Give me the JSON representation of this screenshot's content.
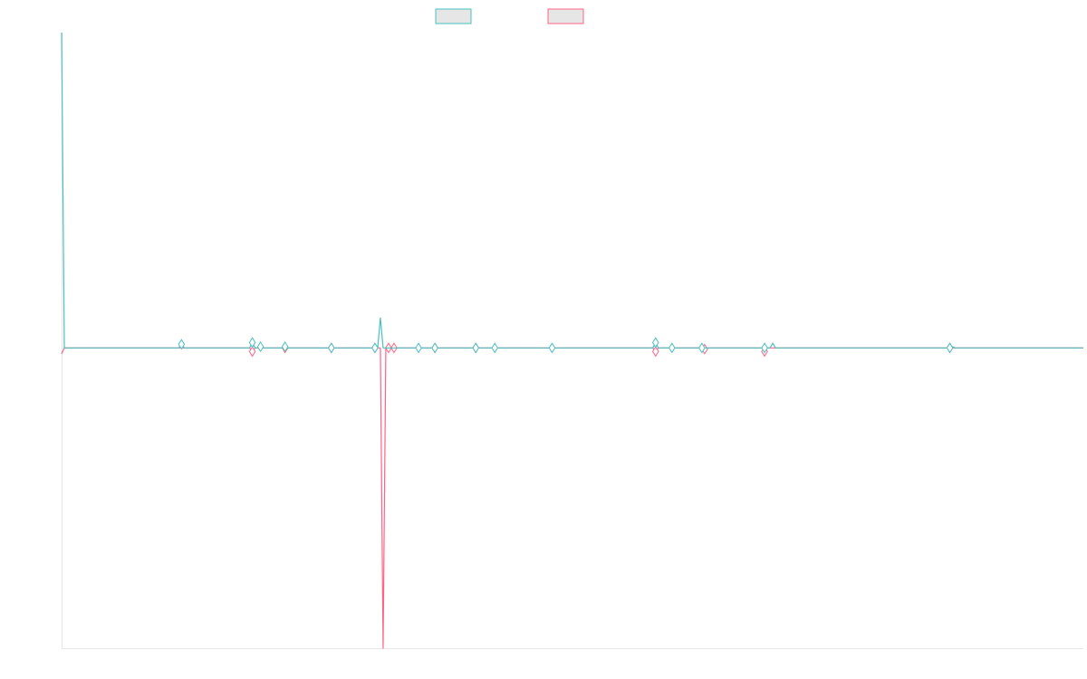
{
  "chart_data": {
    "type": "line",
    "title": "",
    "xlabel": "",
    "ylabel": "",
    "x": [
      0,
      1,
      2,
      3,
      4,
      5,
      6,
      7,
      8,
      9,
      10,
      11,
      12,
      13,
      14,
      15,
      16,
      17,
      18,
      19,
      20,
      21,
      22,
      23,
      24,
      25,
      26,
      27,
      28,
      29,
      30,
      31,
      32,
      33,
      34,
      35,
      36,
      37,
      38,
      39,
      40,
      41,
      42,
      43,
      44,
      45,
      46,
      47,
      48,
      49,
      50,
      51,
      52,
      53,
      54,
      55,
      56,
      57,
      58,
      59,
      60,
      61,
      62,
      63,
      64,
      65,
      66,
      67,
      68,
      69,
      70,
      71,
      72,
      73,
      74,
      75,
      76,
      77,
      78,
      79,
      80,
      81,
      82,
      83,
      84,
      85,
      86,
      87,
      88,
      89,
      90,
      91,
      92,
      93,
      94,
      95,
      96,
      97,
      98,
      99,
      100,
      101,
      102,
      103,
      104,
      105,
      106,
      107,
      108,
      109,
      110,
      111,
      112,
      113,
      114,
      115,
      116,
      117,
      118,
      119,
      120,
      121,
      122,
      123,
      124,
      125,
      126,
      127,
      128,
      129,
      130,
      131,
      132,
      133,
      134,
      135,
      136,
      137,
      138,
      139,
      140,
      141,
      142,
      143,
      144,
      145,
      146,
      147,
      148,
      149,
      150,
      151,
      152,
      153,
      154,
      155,
      156,
      157,
      158,
      159,
      160,
      161,
      162,
      163,
      164,
      165,
      166,
      167,
      168,
      169,
      170,
      171,
      172,
      173,
      174,
      175,
      176,
      177,
      178,
      179,
      180,
      181,
      182,
      183,
      184,
      185,
      186,
      187,
      188,
      189,
      190,
      191,
      192,
      193,
      194,
      195,
      196,
      197,
      198,
      199,
      200,
      201,
      202,
      203,
      204,
      205,
      206,
      207,
      208,
      209,
      210,
      211,
      212,
      213,
      214,
      215,
      216,
      217,
      218,
      219,
      220,
      221,
      222,
      223,
      224,
      225,
      226,
      227,
      228,
      229,
      230,
      231,
      232,
      233,
      234,
      235,
      236,
      237,
      238,
      239,
      240,
      241,
      242,
      243,
      244,
      245,
      246,
      247,
      248,
      249,
      250,
      251,
      252,
      253,
      254,
      255,
      256,
      257,
      258,
      259,
      260,
      261,
      262,
      263,
      264,
      265,
      266,
      267,
      268,
      269,
      270,
      271,
      272,
      273,
      274,
      275,
      276,
      277,
      278,
      279,
      280,
      281,
      282,
      283,
      284,
      285,
      286,
      287,
      288,
      289,
      290,
      291,
      292,
      293,
      294,
      295,
      296,
      297,
      298,
      299,
      300,
      301,
      302,
      303,
      304,
      305,
      306,
      307,
      308,
      309,
      310,
      311,
      312,
      313,
      314,
      315,
      316,
      317,
      318,
      319,
      320,
      321,
      322,
      323,
      324,
      325,
      326,
      327,
      328,
      329,
      330,
      331,
      332,
      333,
      334,
      335,
      336,
      337,
      338,
      339,
      340,
      341,
      342,
      343,
      344,
      345,
      346,
      347,
      348,
      349,
      350,
      351,
      352,
      353,
      354,
      355,
      356,
      357,
      358,
      359,
      360,
      361,
      362,
      363,
      364,
      365,
      366,
      367,
      368,
      369,
      370,
      371,
      372,
      373,
      374,
      375
    ],
    "ylim": [
      -1.0,
      1.05
    ],
    "grid": false,
    "legend_placement": "top-center",
    "series": [
      {
        "name": "",
        "color": "#4bc0c0",
        "marker": "none",
        "spikes": {
          "0": 1.05,
          "1": 0.0,
          "44": 0.012,
          "70": 0.018,
          "73": 0.004,
          "82": 0.004,
          "117": 0.1,
          "118": 0.0,
          "218": 0.018,
          "261": 0.016,
          "327": 0.004
        },
        "default": 0.0
      },
      {
        "name": "",
        "color": "#ff6384",
        "marker": "diamond",
        "spikes": {
          "0": -0.02,
          "1": 0.0,
          "70": -0.012,
          "118": -1.0,
          "119": 0.0,
          "218": -0.012,
          "236": -0.004,
          "258": -0.012
        },
        "default": 0.0
      }
    ],
    "point_markers_series0": [
      44,
      70,
      73,
      82,
      99,
      115,
      131,
      137,
      152,
      159,
      180,
      218,
      224,
      235,
      258,
      326
    ],
    "point_markers_series1": [
      70,
      82,
      99,
      115,
      120,
      122,
      137,
      152,
      218,
      236,
      258,
      326
    ]
  },
  "legend": {
    "swatch_colors": [
      "#4bc0c0",
      "#ff6384"
    ]
  }
}
